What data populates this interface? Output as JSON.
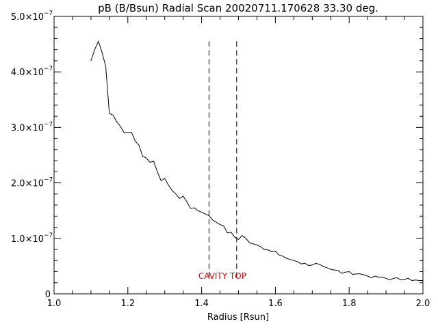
{
  "chart_data": {
    "type": "line",
    "title": "pB (B/Bsun) Radial Scan 20020711.170628 33.30 deg.",
    "xlabel": "Radius [Rsun]",
    "ylabel": "",
    "xlim": [
      1.0,
      2.0
    ],
    "ylim": [
      0,
      5e-07
    ],
    "x_ticks": [
      {
        "value": 1.0,
        "label": "1.0"
      },
      {
        "value": 1.2,
        "label": "1.2"
      },
      {
        "value": 1.4,
        "label": "1.4"
      },
      {
        "value": 1.6,
        "label": "1.6"
      },
      {
        "value": 1.8,
        "label": "1.8"
      },
      {
        "value": 2.0,
        "label": "2.0"
      }
    ],
    "y_ticks": [
      {
        "value": 0,
        "label": "0",
        "exp": ""
      },
      {
        "value": 1e-07,
        "label": "1.0×10",
        "exp": "−7"
      },
      {
        "value": 2e-07,
        "label": "2.0×10",
        "exp": "−7"
      },
      {
        "value": 3e-07,
        "label": "3.0×10",
        "exp": "−7"
      },
      {
        "value": 4e-07,
        "label": "4.0×10",
        "exp": "−7"
      },
      {
        "value": 5e-07,
        "label": "5.0×10",
        "exp": "−7"
      }
    ],
    "grid": false,
    "line_color": "#000000",
    "annotation": {
      "text": "CAVITY TOP",
      "color": "#e00000",
      "x": 1.497,
      "y": 3.2e-08
    },
    "vlines": [
      {
        "x": 1.42,
        "ymin": 2.5e-08,
        "ymax": 4.55e-07
      },
      {
        "x": 1.495,
        "ymin": 2.5e-08,
        "ymax": 4.55e-07
      }
    ],
    "series": [
      {
        "x": [
          1.1,
          1.11,
          1.12,
          1.13,
          1.14,
          1.15,
          1.16,
          1.17,
          1.18,
          1.19,
          1.2,
          1.21,
          1.22,
          1.23,
          1.24,
          1.25,
          1.26,
          1.27,
          1.28,
          1.29,
          1.3,
          1.31,
          1.32,
          1.33,
          1.34,
          1.35,
          1.36,
          1.37,
          1.38,
          1.39,
          1.4,
          1.41,
          1.42,
          1.43,
          1.44,
          1.45,
          1.46,
          1.47,
          1.48,
          1.49,
          1.5,
          1.51,
          1.52,
          1.53,
          1.54,
          1.55,
          1.56,
          1.57,
          1.58,
          1.59,
          1.6,
          1.61,
          1.62,
          1.63,
          1.64,
          1.65,
          1.66,
          1.67,
          1.68,
          1.69,
          1.7,
          1.71,
          1.72,
          1.73,
          1.74,
          1.75,
          1.76,
          1.77,
          1.78,
          1.79,
          1.8,
          1.81,
          1.82,
          1.83,
          1.84,
          1.85,
          1.86,
          1.87,
          1.88,
          1.89,
          1.9,
          1.91,
          1.92,
          1.93,
          1.94,
          1.95,
          1.96,
          1.97,
          1.98,
          1.99,
          2.0
        ],
        "y": [
          4.2e-07,
          4.4e-07,
          4.55e-07,
          4.35e-07,
          4.1e-07,
          3.25e-07,
          3.22e-07,
          3.1e-07,
          3.02e-07,
          2.9e-07,
          2.91e-07,
          2.91e-07,
          2.75e-07,
          2.68e-07,
          2.48e-07,
          2.45e-07,
          2.37e-07,
          2.39e-07,
          2.2e-07,
          2.04e-07,
          2.08e-07,
          1.96e-07,
          1.86e-07,
          1.8e-07,
          1.72e-07,
          1.76e-07,
          1.66e-07,
          1.54e-07,
          1.55e-07,
          1.5e-07,
          1.47e-07,
          1.44e-07,
          1.41e-07,
          1.33e-07,
          1.29e-07,
          1.25e-07,
          1.22e-07,
          1.1e-07,
          1.11e-07,
          1.02e-07,
          9.8e-08,
          1.05e-07,
          1e-07,
          9.2e-08,
          9e-08,
          8.8e-08,
          8.5e-08,
          8e-08,
          7.9e-08,
          7.6e-08,
          7.7e-08,
          7e-08,
          6.8e-08,
          6.4e-08,
          6.2e-08,
          6e-08,
          5.8e-08,
          5.4e-08,
          5.5e-08,
          5.1e-08,
          5.2e-08,
          5.5e-08,
          5.3e-08,
          4.9e-08,
          4.7e-08,
          4.4e-08,
          4.3e-08,
          4.2e-08,
          3.7e-08,
          3.9e-08,
          4e-08,
          3.5e-08,
          3.6e-08,
          3.6e-08,
          3.4e-08,
          3.2e-08,
          2.9e-08,
          3.2e-08,
          3e-08,
          3e-08,
          2.8e-08,
          2.5e-08,
          2.8e-08,
          2.9e-08,
          2.5e-08,
          2.6e-08,
          2.8e-08,
          2.4e-08,
          2.5e-08,
          2.4e-08,
          2.4e-08
        ]
      }
    ]
  }
}
